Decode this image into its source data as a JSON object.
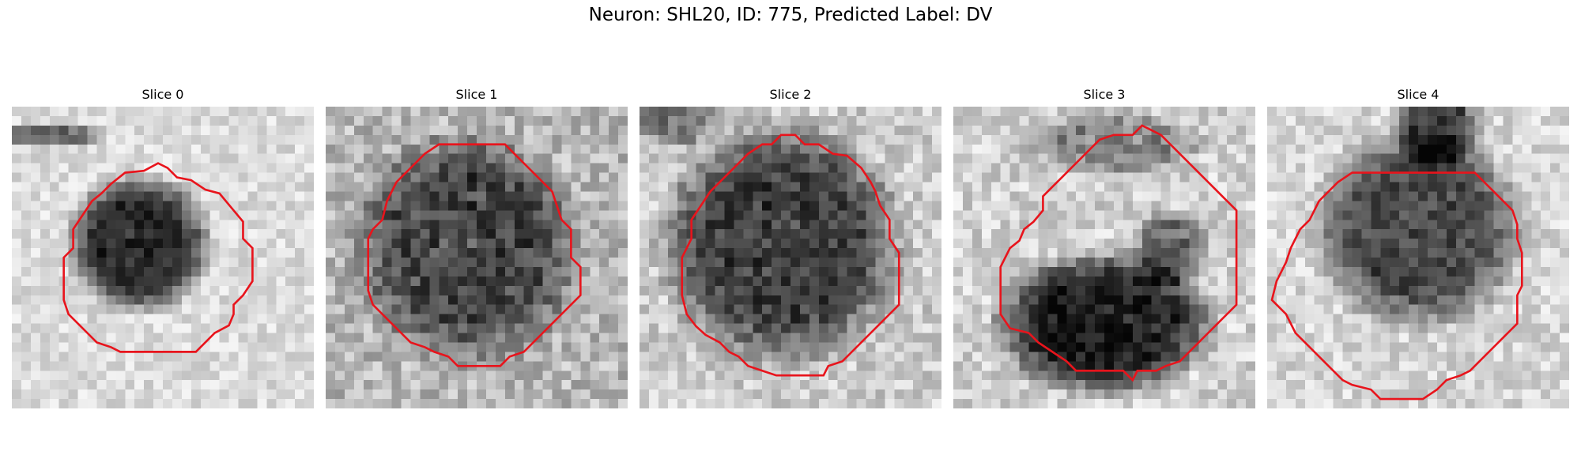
{
  "figure": {
    "title": "Neuron: SHL20, ID: 775, Predicted Label: DV"
  },
  "panels": [
    {
      "title": "Slice 0"
    },
    {
      "title": "Slice 1"
    },
    {
      "title": "Slice 2"
    },
    {
      "title": "Slice 3"
    },
    {
      "title": "Slice 4"
    }
  ],
  "colors": {
    "contour": "#e8141c",
    "background": "#ffffff"
  }
}
